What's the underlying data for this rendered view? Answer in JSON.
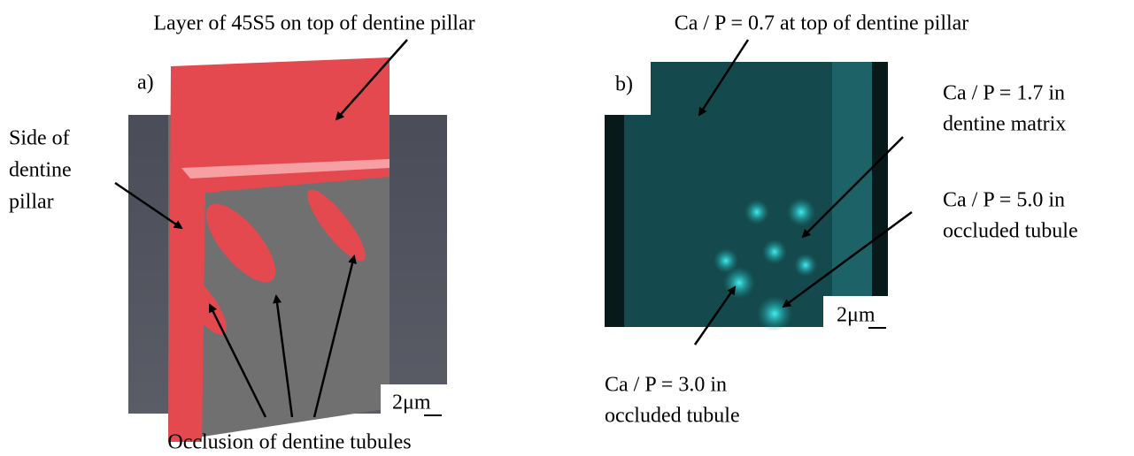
{
  "panel_a": {
    "label": "a)",
    "top_label": "Layer of 45S5 on top of dentine pillar",
    "side_label": [
      "Side of",
      "dentine",
      "pillar"
    ],
    "bottom_label": "Occlusion of dentine tubules",
    "scale_bar": "2μm"
  },
  "panel_b": {
    "label": "b)",
    "top_label": "Ca / P = 0.7 at top of dentine pillar",
    "matrix_label": [
      "Ca / P = 1.7 in",
      "dentine matrix"
    ],
    "tubule_label_right": [
      "Ca / P = 5.0 in",
      "occluded tubule"
    ],
    "tubule_label_bottom": [
      "Ca / P = 3.0 in",
      "occluded tubule"
    ],
    "scale_bar": "2μm"
  }
}
